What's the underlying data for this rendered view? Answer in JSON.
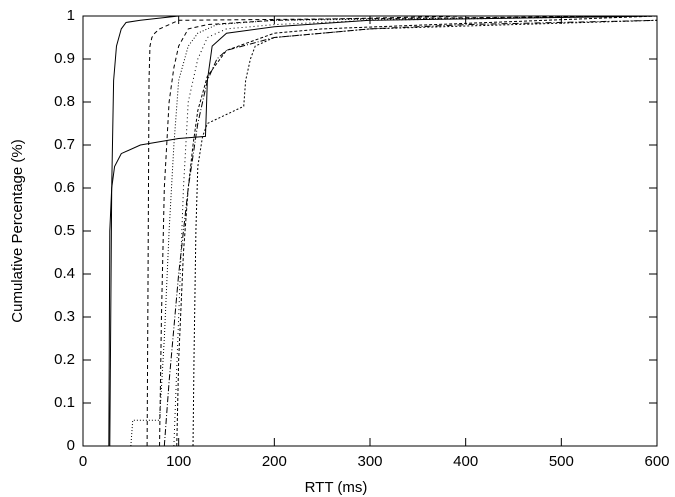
{
  "chart_data": {
    "type": "line",
    "xlabel": "RTT (ms)",
    "ylabel": "Cumulative Percentage (%)",
    "xlim": [
      0,
      600
    ],
    "ylim": [
      0,
      1
    ],
    "xticks": [
      0,
      100,
      200,
      300,
      400,
      500,
      600
    ],
    "yticks": [
      0,
      0.1,
      0.2,
      0.3,
      0.4,
      0.5,
      0.6,
      0.7,
      0.8,
      0.9,
      1
    ],
    "grid": false,
    "series": [
      {
        "color": "#000000",
        "dash": "none",
        "x": [
          28,
          29,
          30,
          32,
          35,
          40,
          45,
          60,
          100,
          600
        ],
        "values": [
          0,
          0.3,
          0.6,
          0.85,
          0.93,
          0.97,
          0.985,
          0.99,
          1,
          1
        ]
      },
      {
        "color": "#000000",
        "dash": "none",
        "x": [
          25,
          27,
          28,
          30,
          33,
          40,
          60,
          100,
          128,
          130,
          135,
          150,
          200,
          300,
          600
        ],
        "values": [
          0,
          0,
          0.5,
          0.6,
          0.65,
          0.68,
          0.7,
          0.715,
          0.72,
          0.85,
          0.93,
          0.96,
          0.975,
          0.99,
          1
        ]
      },
      {
        "color": "#000000",
        "dash": "4,3",
        "x": [
          67,
          68,
          69,
          70,
          72,
          75,
          80,
          100,
          600
        ],
        "values": [
          0,
          0.4,
          0.85,
          0.93,
          0.95,
          0.96,
          0.97,
          0.99,
          1
        ]
      },
      {
        "color": "#000000",
        "dash": "4,3",
        "x": [
          80,
          82,
          85,
          90,
          95,
          100,
          110,
          130,
          200,
          400,
          600
        ],
        "values": [
          0,
          0.3,
          0.6,
          0.8,
          0.88,
          0.93,
          0.97,
          0.98,
          0.99,
          1,
          1
        ]
      },
      {
        "color": "#000000",
        "dash": "1,2",
        "x": [
          50,
          52,
          80,
          85,
          90,
          95,
          100,
          110,
          120,
          140,
          200,
          600
        ],
        "values": [
          0,
          0.06,
          0.06,
          0.25,
          0.5,
          0.7,
          0.85,
          0.93,
          0.96,
          0.98,
          0.99,
          1
        ]
      },
      {
        "color": "#000000",
        "dash": "2,2",
        "x": [
          115,
          116,
          118,
          120,
          125,
          130,
          168,
          170,
          175,
          180,
          200,
          250,
          300,
          600
        ],
        "values": [
          0,
          0.2,
          0.5,
          0.65,
          0.72,
          0.75,
          0.79,
          0.85,
          0.9,
          0.93,
          0.95,
          0.96,
          0.97,
          0.99
        ]
      },
      {
        "color": "#000000",
        "dash": "6,2,1,2",
        "x": [
          85,
          90,
          100,
          110,
          120,
          130,
          140,
          150,
          200,
          300,
          400,
          600
        ],
        "values": [
          0,
          0.15,
          0.4,
          0.6,
          0.75,
          0.85,
          0.9,
          0.92,
          0.95,
          0.97,
          0.98,
          0.99
        ]
      },
      {
        "color": "#000000",
        "dash": "1,3",
        "x": [
          95,
          100,
          105,
          110,
          120,
          130,
          150,
          200,
          300,
          600
        ],
        "values": [
          0,
          0.3,
          0.6,
          0.8,
          0.9,
          0.95,
          0.97,
          0.98,
          0.99,
          1
        ]
      },
      {
        "color": "#000000",
        "dash": "3,2",
        "x": [
          98,
          100,
          105,
          110,
          115,
          120,
          130,
          150,
          200,
          250,
          600
        ],
        "values": [
          0,
          0.2,
          0.45,
          0.6,
          0.7,
          0.78,
          0.86,
          0.92,
          0.96,
          0.97,
          1
        ]
      }
    ]
  }
}
